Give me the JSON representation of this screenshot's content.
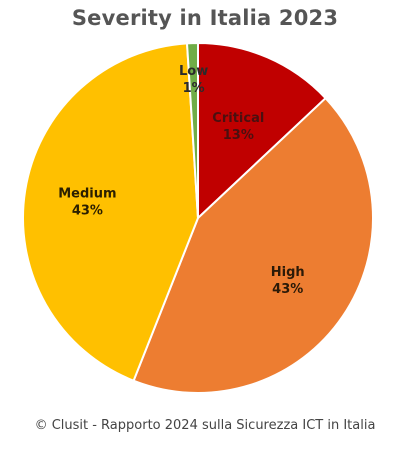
{
  "chart_data": {
    "type": "pie",
    "title": "Severity in Italia 2023",
    "categories": [
      "Critical",
      "High",
      "Medium",
      "Low"
    ],
    "values": [
      13,
      43,
      43,
      1
    ],
    "value_labels": [
      "13%",
      "43%",
      "43%",
      "1%"
    ],
    "colors": [
      "#C00000",
      "#ED7D31",
      "#FFC000",
      "#70AD47"
    ],
    "label_colors": [
      "#4a1010",
      "#2b1a08",
      "#2b1f00",
      "#2b2b2b"
    ],
    "start": "12 o'clock",
    "direction": "clockwise",
    "legend": "none"
  },
  "caption": "© Clusit - Rapporto 2024 sulla Sicurezza ICT in Italia"
}
